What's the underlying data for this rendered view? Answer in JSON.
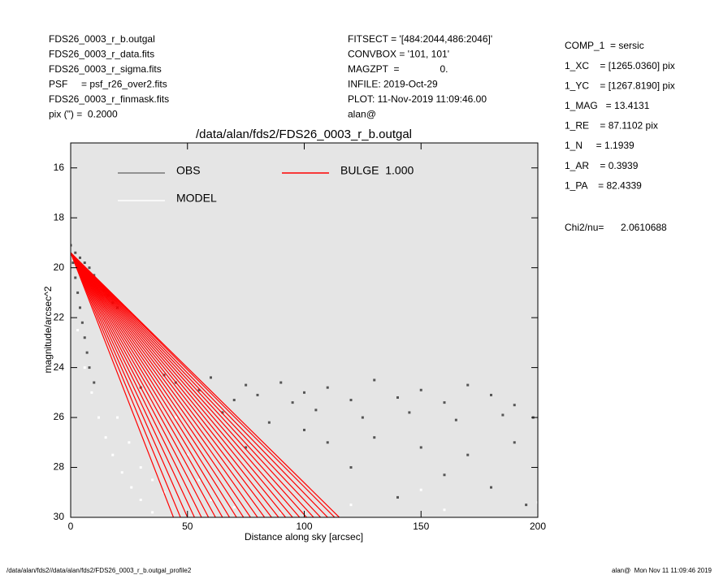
{
  "header": {
    "left": [
      "FDS26_0003_r_b.outgal",
      "FDS26_0003_r_data.fits",
      "FDS26_0003_r_sigma.fits",
      "PSF     = psf_r26_over2.fits",
      "FDS26_0003_r_finmask.fits",
      "pix (\") =  0.2000"
    ],
    "center": [
      "FITSECT = '[484:2044,486:2046]'",
      "CONVBOX = '101, 101'",
      "MAGZPT  =               0.",
      "INFILE: 2019-Oct-29",
      "PLOT: 11-Nov-2019 11:09:46.00",
      "alan@"
    ],
    "right": [
      "COMP_1  = sersic",
      "1_XC    = [1265.0360] pix",
      "1_YC    = [1267.8190] pix",
      "1_MAG   = 13.4131",
      "1_RE    = 87.1102 pix",
      "1_N     = 1.1939",
      "1_AR    = 0.3939",
      "1_PA    = 82.4339"
    ],
    "chi2": [
      "Chi2/nu=",
      "2.0610688"
    ]
  },
  "chart_data": {
    "type": "scatter",
    "title": "/data/alan/fds2/FDS26_0003_r_b.outgal",
    "x_label": "Distance along sky [arcsec]",
    "y_label": "magnitude/arcsec^2",
    "xlim": [
      0,
      200
    ],
    "xticks": [
      0,
      50,
      100,
      150,
      200
    ],
    "ylim": [
      15,
      30
    ],
    "y_inverted": true,
    "yticks": [
      16,
      18,
      20,
      22,
      24,
      26,
      28,
      30
    ],
    "series": [
      {
        "name": "OBS",
        "color": "#555555",
        "x": [
          0,
          2,
          4,
          6,
          8,
          10,
          12,
          14,
          16,
          18,
          20,
          1,
          2,
          3,
          4,
          5,
          6,
          7,
          8,
          10,
          30,
          40,
          45,
          55,
          60,
          70,
          75,
          80,
          90,
          95,
          100,
          110,
          120,
          130,
          140,
          150,
          160,
          170,
          180,
          190,
          198,
          65,
          85,
          105,
          125,
          145,
          165,
          185,
          110,
          130,
          150,
          170,
          190,
          120,
          160,
          180,
          140,
          195,
          100,
          75
        ],
        "values": [
          19.1,
          19.4,
          19.6,
          19.8,
          20.0,
          20.3,
          20.6,
          20.9,
          21.1,
          21.4,
          21.6,
          19.8,
          20.4,
          21.0,
          21.6,
          22.2,
          22.8,
          23.4,
          24.0,
          24.6,
          24.8,
          24.3,
          24.6,
          24.9,
          24.4,
          25.3,
          24.7,
          25.1,
          24.6,
          25.4,
          25.0,
          24.8,
          25.3,
          24.5,
          25.2,
          24.9,
          25.4,
          24.7,
          25.1,
          25.5,
          26.0,
          25.8,
          26.2,
          25.7,
          26.0,
          25.8,
          26.1,
          25.9,
          27.0,
          26.8,
          27.2,
          27.5,
          27.0,
          28.0,
          28.3,
          28.8,
          29.2,
          29.5,
          26.5,
          27.2
        ]
      },
      {
        "name": "MODEL",
        "color": "#ffffff",
        "x": [
          3,
          6,
          9,
          12,
          15,
          18,
          22,
          26,
          30,
          35,
          20,
          25,
          30,
          35,
          40,
          45,
          50,
          55,
          60,
          70,
          90,
          120,
          160,
          200,
          150
        ],
        "values": [
          22.5,
          24.0,
          25.0,
          26.0,
          26.8,
          27.5,
          28.2,
          28.8,
          29.3,
          29.8,
          26.0,
          27.0,
          28.0,
          28.5,
          29.0,
          26.0,
          27.5,
          28.5,
          29.3,
          29.6,
          29.8,
          29.5,
          29.7,
          29.4,
          28.9
        ]
      },
      {
        "name": "BULGE  1.000",
        "color": "#ff0000",
        "rays": [
          {
            "x": [
              0,
              44
            ],
            "values": [
              19.4,
              30
            ]
          },
          {
            "x": [
              0,
              47
            ],
            "values": [
              19.4,
              30
            ]
          },
          {
            "x": [
              0,
              50
            ],
            "values": [
              19.4,
              30
            ]
          },
          {
            "x": [
              0,
              53
            ],
            "values": [
              19.4,
              30
            ]
          },
          {
            "x": [
              0,
              56
            ],
            "values": [
              19.4,
              30
            ]
          },
          {
            "x": [
              0,
              59
            ],
            "values": [
              19.4,
              30
            ]
          },
          {
            "x": [
              0,
              62
            ],
            "values": [
              19.4,
              30
            ]
          },
          {
            "x": [
              0,
              65
            ],
            "values": [
              19.4,
              30
            ]
          },
          {
            "x": [
              0,
              68
            ],
            "values": [
              19.4,
              30
            ]
          },
          {
            "x": [
              0,
              71
            ],
            "values": [
              19.4,
              30
            ]
          },
          {
            "x": [
              0,
              74
            ],
            "values": [
              19.4,
              30
            ]
          },
          {
            "x": [
              0,
              77
            ],
            "values": [
              19.4,
              30
            ]
          },
          {
            "x": [
              0,
              80
            ],
            "values": [
              19.4,
              30
            ]
          },
          {
            "x": [
              0,
              83
            ],
            "values": [
              19.4,
              30
            ]
          },
          {
            "x": [
              0,
              86
            ],
            "values": [
              19.4,
              30
            ]
          },
          {
            "x": [
              0,
              89
            ],
            "values": [
              19.4,
              30
            ]
          },
          {
            "x": [
              0,
              92
            ],
            "values": [
              19.4,
              30
            ]
          },
          {
            "x": [
              0,
              95
            ],
            "values": [
              19.4,
              30
            ]
          },
          {
            "x": [
              0,
              98
            ],
            "values": [
              19.4,
              30
            ]
          },
          {
            "x": [
              0,
              101
            ],
            "values": [
              19.4,
              30
            ]
          },
          {
            "x": [
              0,
              104
            ],
            "values": [
              19.4,
              30
            ]
          },
          {
            "x": [
              0,
              107
            ],
            "values": [
              19.4,
              30
            ]
          },
          {
            "x": [
              0,
              110
            ],
            "values": [
              19.4,
              30
            ]
          },
          {
            "x": [
              0,
              113
            ],
            "values": [
              19.4,
              30
            ]
          },
          {
            "x": [
              0,
              115
            ],
            "values": [
              19.4,
              30
            ]
          }
        ]
      }
    ]
  },
  "footer": {
    "left": "/data/alan/fds2//data/alan/fds2/FDS26_0003_r_b.outgal_profile2",
    "right": "alan@  Mon Nov 11 11:09:46 2019"
  }
}
